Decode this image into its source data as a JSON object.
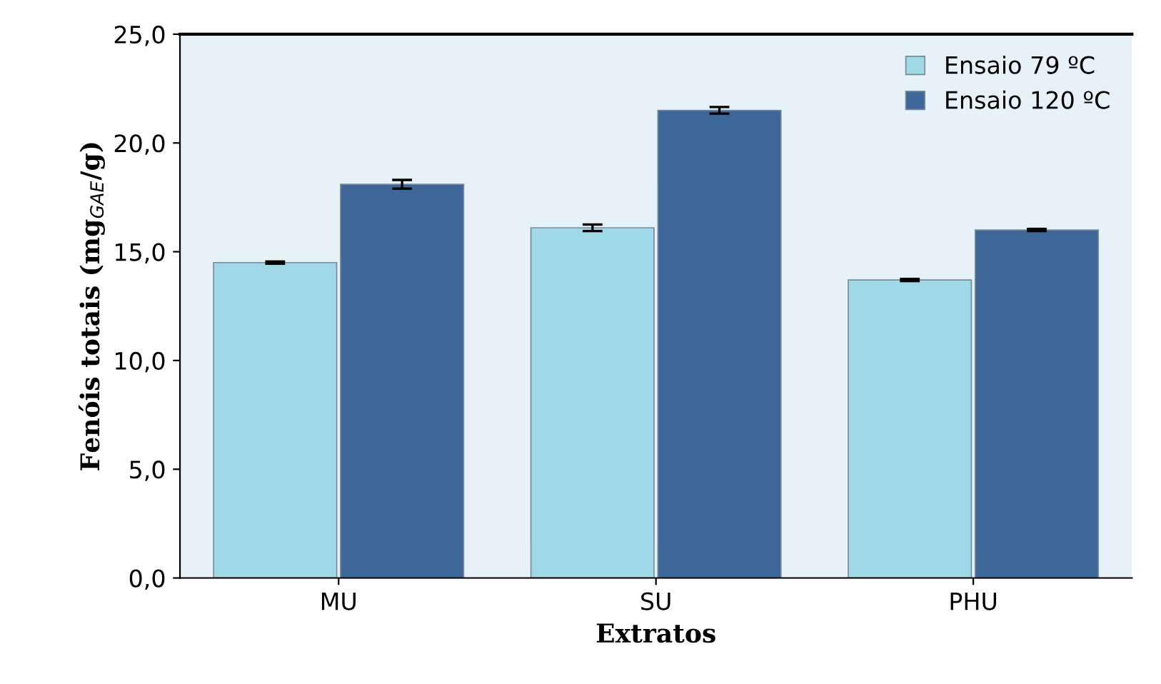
{
  "chart_data": {
    "type": "bar",
    "xlabel": "Extratos",
    "ylabel": "Fenóis totais (mg$_{GAE}$/g)",
    "categories": [
      "MU",
      "SU",
      "PHU"
    ],
    "series": [
      {
        "name": "Ensaio 79 ºC",
        "color": "#9fd8e6",
        "values": [
          14.5,
          16.1,
          13.7
        ],
        "errors": [
          0.05,
          0.15,
          0.05
        ]
      },
      {
        "name": "Ensaio 120 ºC",
        "color": "#3d6699",
        "values": [
          18.1,
          21.5,
          16.0
        ],
        "errors": [
          0.2,
          0.15,
          0.05
        ]
      }
    ],
    "ylim": [
      0,
      25
    ],
    "yticks": [
      {
        "value": 0,
        "label": "0,0"
      },
      {
        "value": 5,
        "label": "5,0"
      },
      {
        "value": 10,
        "label": "10,0"
      },
      {
        "value": 15,
        "label": "15,0"
      },
      {
        "value": 20,
        "label": "20,0"
      },
      {
        "value": 25,
        "label": "25,0"
      }
    ],
    "grid": false,
    "legend": "top right"
  }
}
